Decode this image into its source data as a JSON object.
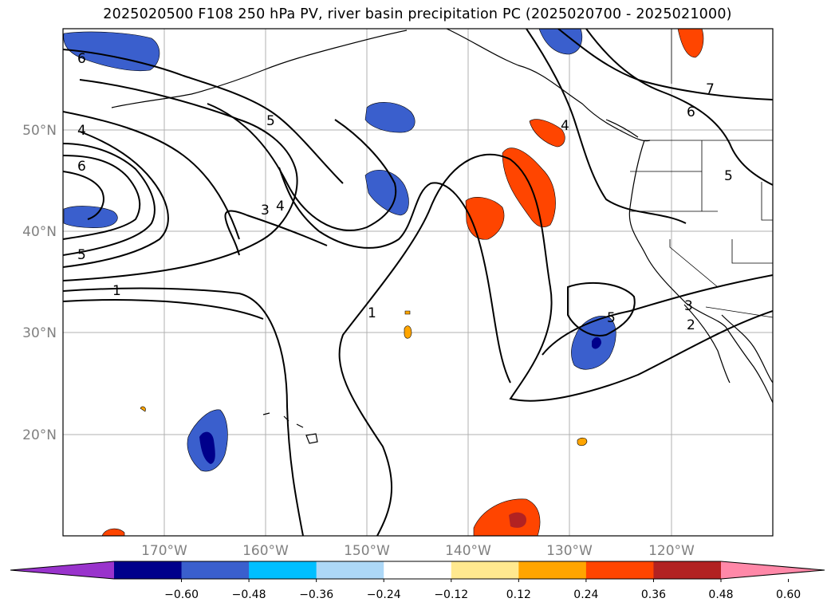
{
  "title": "2025020500 F108 250 hPa PV, river basin precipitation PC (2025020700 - 2025021000)",
  "map": {
    "lon_labels": [
      "170°W",
      "160°W",
      "150°W",
      "140°W",
      "130°W",
      "120°W"
    ],
    "lat_labels": [
      "50°N",
      "40°N",
      "30°N",
      "20°N"
    ],
    "contour_labels": [
      "6",
      "4",
      "6",
      "5",
      "1",
      "5",
      "4",
      "3",
      "1",
      "4",
      "7",
      "6",
      "5",
      "5",
      "3",
      "2"
    ]
  },
  "colorbar": {
    "colors": [
      "#9933cc",
      "#00008b",
      "#3a5fcd",
      "#00bfff",
      "#add8f7",
      "#ffffff",
      "#ffe98f",
      "#ffa500",
      "#ff4500",
      "#b22222",
      "#ff88a8"
    ],
    "ticks": [
      "−0.60",
      "−0.48",
      "−0.36",
      "−0.24",
      "−0.12",
      "0.12",
      "0.24",
      "0.36",
      "0.48",
      "0.60"
    ]
  }
}
